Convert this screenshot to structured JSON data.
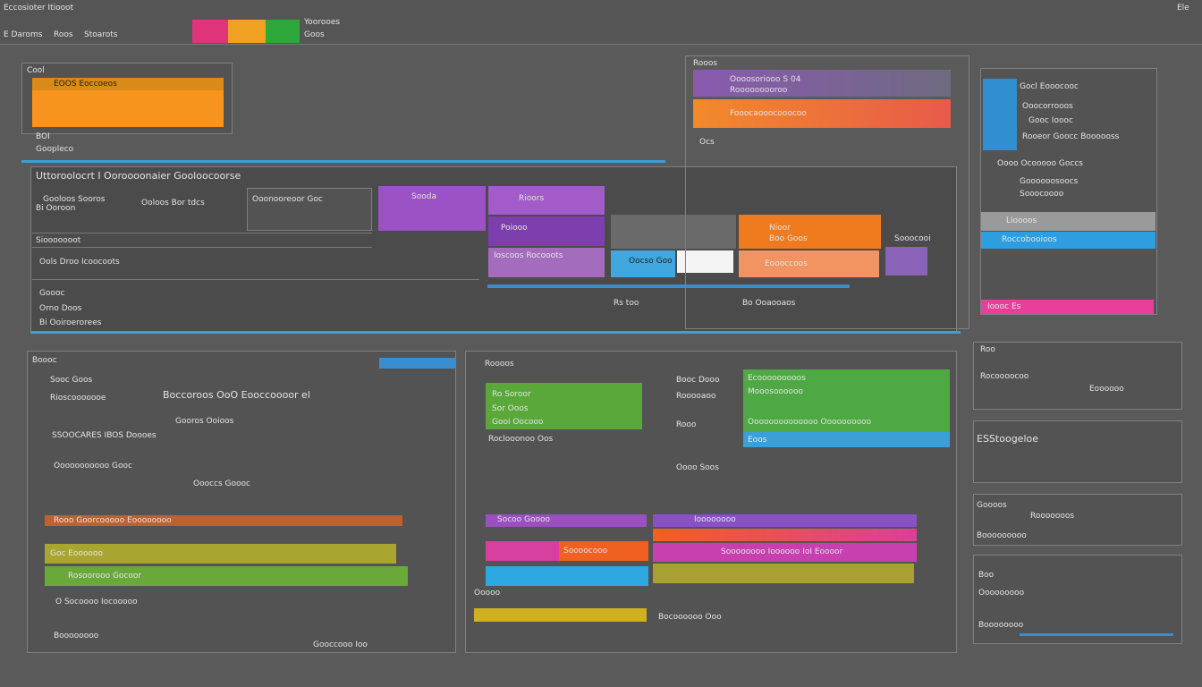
{
  "header": {
    "title": "Eccosioter Itiooot",
    "menu": [
      "E Daroms",
      "Roos",
      "Stoarots"
    ],
    "status": "Yoorooes",
    "substatus": "Goos",
    "corner": "Ele"
  },
  "top_left": {
    "label": "Cool",
    "bar": "EOOS Eoccoeos",
    "sub": "BOI",
    "footer": "Goopleco"
  },
  "timeline": {
    "title": "Uttoroolocrt I Ooroooonaier Gooloocoorse",
    "rows": [
      "Siooooooot",
      "Bi Ooroon",
      "Ools Droo Icoocoots",
      "Goooc",
      "Orno Doos",
      "Bi Ooiroerorees"
    ],
    "cards": [
      "Gooloos Sooros",
      "Ooloos Bor tdcs",
      "Ooonooreoor Goc"
    ],
    "blocks": [
      "Sooda",
      "Rioors",
      "Poiooo",
      "Ioscoos Rocooots",
      "Nioor",
      "Boo Goos",
      "Oocso Goo",
      "Eoooccoos",
      "Sooocooi"
    ],
    "footers": [
      "Rs too",
      "Bo Ooaooaos"
    ]
  },
  "top_mid": {
    "label": "Rooos",
    "bars": [
      "Oooosoriooo S 04",
      "Rooooooooroo",
      "Fooocaooocooocoo"
    ],
    "sub": "Ocs"
  },
  "right": {
    "items": [
      "Gocl Eooocooc",
      "Ooocorrooos",
      "Gooc Ioooc",
      "Rooeor Goocc Boooooss",
      "Oooo Ocooooo Goccs",
      "Goooooosoocs",
      "Sooocoooo",
      "Lioooos",
      "Roccobooioos",
      "Ioooc Es"
    ]
  },
  "bottom_left": {
    "title": "Boooc",
    "rows": [
      "Sooc Goos",
      "Rioscooooooe",
      "Boccoroos OoO Eooccoooor el",
      "SSOOCARES IBOS Doooes",
      "Gooros Ooioos",
      "Ooooooooooo Gooc",
      "Oooccs Goooc",
      "Rooo Goorcooooo Eoooooooo",
      "Goc Eoooooo",
      "Rosoorooo Gocoor",
      "O Socoooo Iocooooo",
      "Boooooooo",
      "Gooccooo Ioo"
    ]
  },
  "bottom_mid": {
    "title": "Roooos",
    "rows": [
      "Ro Soroor",
      "Sor Ooos",
      "Gooi Oocooo",
      "Roclooonoo Oos",
      "Booc Dooo",
      "Rooooaoo",
      "Rooo",
      "Oooo Soos"
    ],
    "bars": [
      "Ecooooooooos",
      "Mooosoooooo",
      "Oooooooooooooo Oooooooooo",
      "Eoos"
    ],
    "lower": [
      "Socoo Goooo",
      "Soooocooo",
      "Ioooooooo",
      "Soooooooo Ioooooo IoI Eoooor",
      "Ooooo",
      "Bocoooooo Ooo"
    ]
  },
  "bottom_right": {
    "items": [
      "Roo",
      "Rocoooocoo",
      "Eoooooo",
      "ESStoogeloe",
      "Goooos",
      "Rooooooos",
      "Booooooooo",
      "Boo",
      "Ooooooooo",
      "Boooooooo"
    ]
  }
}
